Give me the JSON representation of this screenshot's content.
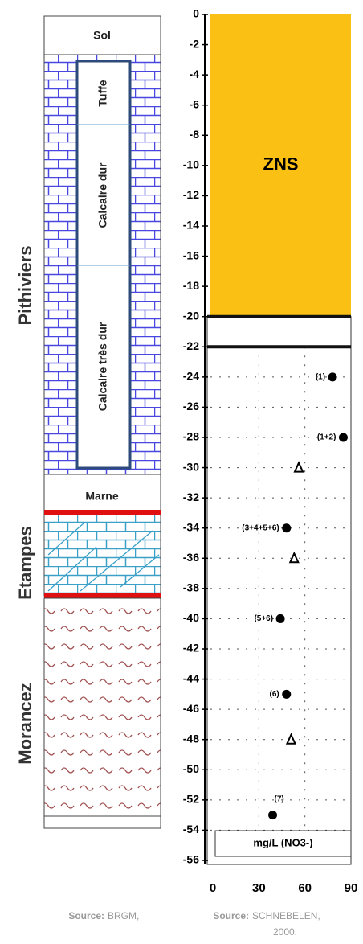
{
  "column": {
    "top": "Sol",
    "layers": [
      "Tuffe",
      "Calcaire dur",
      "Calcaire très dur"
    ],
    "marne": "Marne",
    "formations": [
      "Pithiviers",
      "Etampes",
      "Morancez"
    ],
    "source_label": "Source:",
    "source": "BRGM,"
  },
  "chart_data": {
    "type": "scatter",
    "zone_label": "ZNS",
    "zone": [
      0,
      -20
    ],
    "zone_color": "#fbc014",
    "boundaries": [
      -20,
      -22
    ],
    "xlim": [
      0,
      90
    ],
    "xticks": [
      0,
      30,
      60,
      90
    ],
    "xlabel": "mg/L (NO3-)",
    "ylim": [
      -56,
      0
    ],
    "yticks": [
      0,
      -2,
      -4,
      -6,
      -8,
      -10,
      -12,
      -14,
      -16,
      -18,
      -20,
      -22,
      -24,
      -26,
      -28,
      -30,
      -32,
      -34,
      -36,
      -38,
      -40,
      -42,
      -44,
      -46,
      -48,
      -50,
      -52,
      -54,
      -56
    ],
    "grid": true,
    "series": [
      {
        "color": "#000000",
        "marker": "filled",
        "x": [
          78,
          85,
          48,
          44,
          48,
          39
        ],
        "values": [
          -24,
          -28,
          -34,
          -40,
          -45,
          -53
        ],
        "point_labels": [
          "(1)",
          "(1+2)",
          "(3+4+5+6)",
          "(5+6)",
          "(6)",
          "(7)"
        ]
      },
      {
        "color": "#000000",
        "marker": "open",
        "x": [
          56,
          53,
          51
        ],
        "values": [
          -30,
          -36,
          -48
        ]
      }
    ],
    "source_label": "Source:",
    "source": "SCHNEBELEN,",
    "source_year": "2000."
  }
}
